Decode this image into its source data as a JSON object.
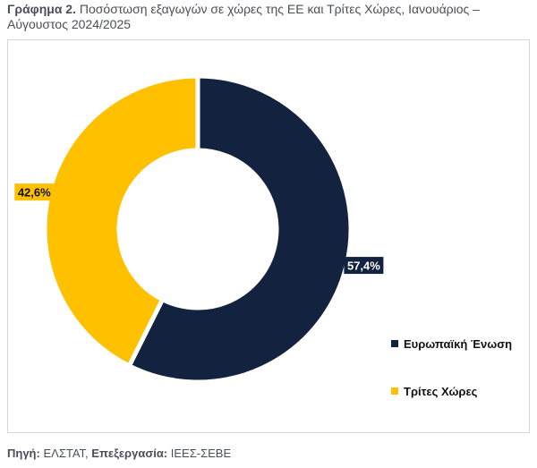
{
  "caption": {
    "label": "Γράφημα 2.",
    "text": "Ποσόστωση εξαγωγών σε χώρες της ΕΕ και Τρίτες Χώρες, Ιανουάριος –",
    "text_line2": "Αύγουστος 2024/2025"
  },
  "chart_data": {
    "type": "pie",
    "variant": "donut",
    "labels": [
      "Ευρωπαϊκή Ένωση",
      "Τρίτες Χώρες"
    ],
    "values": [
      57.4,
      42.6
    ],
    "data_labels": [
      "57,4%",
      "42,6%"
    ],
    "colors": [
      "#13233f",
      "#ffc000"
    ],
    "legend_position": "right"
  },
  "source": {
    "label1": "Πηγή:",
    "value1": "ΕΛΣΤΑΤ,",
    "label2": "Επεξεργασία:",
    "value2": "ΙΕΕΣ-ΣΕΒΕ"
  }
}
